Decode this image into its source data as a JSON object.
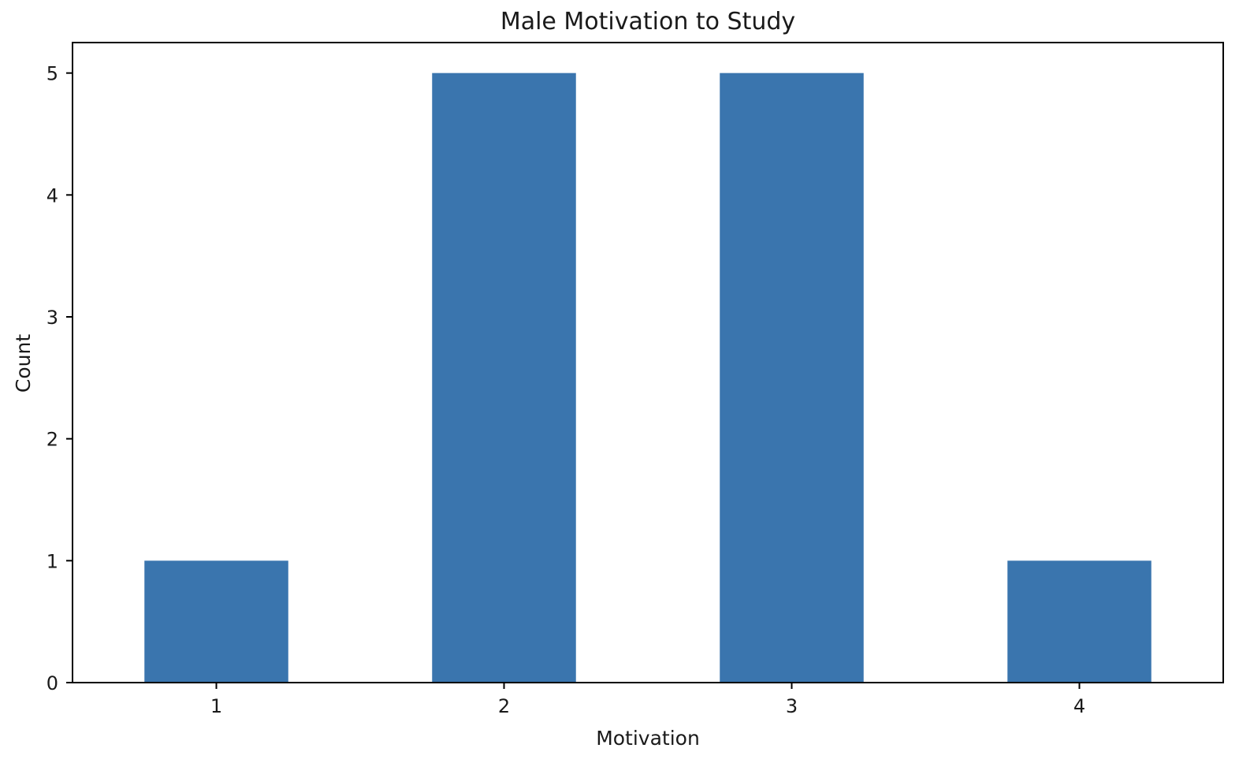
{
  "chart_data": {
    "type": "bar",
    "title": "Male Motivation to Study",
    "xlabel": "Motivation",
    "ylabel": "Count",
    "categories": [
      "1",
      "2",
      "3",
      "4"
    ],
    "values": [
      1,
      5,
      5,
      1
    ],
    "ylim": [
      0,
      5.25
    ],
    "yticks": [
      0,
      1,
      2,
      3,
      4,
      5
    ],
    "bar_color": "#3a75ae",
    "grid": false,
    "legend": "none"
  }
}
